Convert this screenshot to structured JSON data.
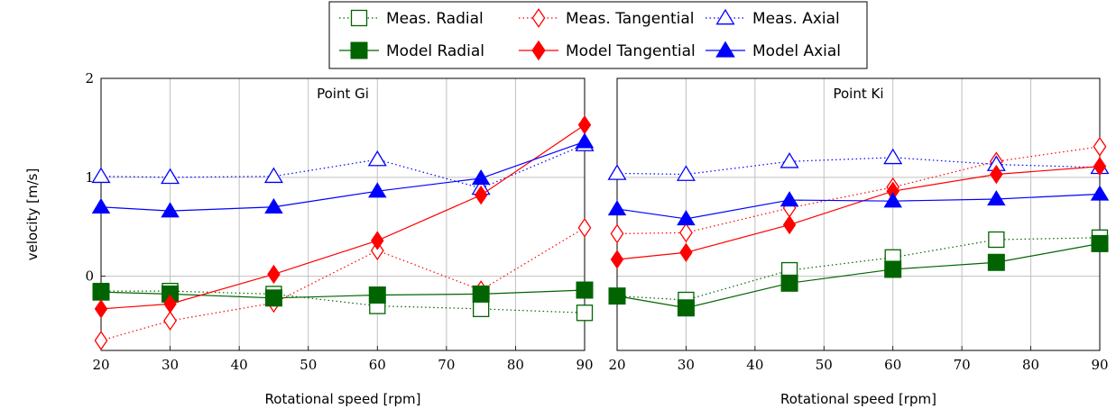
{
  "chart_data": [
    {
      "type": "line",
      "title": "Point Gi",
      "xlabel": "Rotational speed [rpm]",
      "ylabel": "velocity [m/s]",
      "xlim": [
        20,
        90
      ],
      "ylim": [
        -0.75,
        2
      ],
      "xticks": [
        20,
        30,
        40,
        50,
        60,
        70,
        80,
        90
      ],
      "yticks": [
        0,
        1,
        2
      ],
      "grid": true,
      "x": [
        20,
        30,
        45,
        60,
        75,
        90
      ],
      "series": [
        {
          "name": "Meas. Radial",
          "values": [
            -0.15,
            -0.15,
            -0.18,
            -0.3,
            -0.33,
            -0.37
          ]
        },
        {
          "name": "Meas. Tangential",
          "values": [
            -0.65,
            -0.45,
            -0.27,
            0.26,
            -0.14,
            0.49
          ]
        },
        {
          "name": "Meas. Axial",
          "values": [
            1.01,
            1.0,
            1.01,
            1.18,
            0.89,
            1.33
          ]
        },
        {
          "name": "Model Radial",
          "values": [
            -0.16,
            -0.18,
            -0.22,
            -0.19,
            -0.18,
            -0.14
          ]
        },
        {
          "name": "Model Tangential",
          "values": [
            -0.33,
            -0.28,
            0.02,
            0.36,
            0.82,
            1.53
          ]
        },
        {
          "name": "Model Axial",
          "values": [
            0.7,
            0.66,
            0.7,
            0.86,
            0.99,
            1.36
          ]
        }
      ]
    },
    {
      "type": "line",
      "title": "Point Ki",
      "xlabel": "Rotational speed [rpm]",
      "ylabel": "",
      "xlim": [
        20,
        90
      ],
      "ylim": [
        -0.75,
        2
      ],
      "xticks": [
        20,
        30,
        40,
        50,
        60,
        70,
        80,
        90
      ],
      "yticks": [],
      "grid": true,
      "x": [
        20,
        30,
        45,
        60,
        75,
        90
      ],
      "series": [
        {
          "name": "Meas. Radial",
          "values": [
            -0.2,
            -0.24,
            0.06,
            0.19,
            0.37,
            0.39
          ]
        },
        {
          "name": "Meas. Tangential",
          "values": [
            0.43,
            0.44,
            0.69,
            0.9,
            1.16,
            1.31
          ]
        },
        {
          "name": "Meas. Axial",
          "values": [
            1.04,
            1.03,
            1.16,
            1.2,
            1.13,
            1.1
          ]
        },
        {
          "name": "Model Radial",
          "values": [
            -0.2,
            -0.32,
            -0.07,
            0.07,
            0.14,
            0.33
          ]
        },
        {
          "name": "Model Tangential",
          "values": [
            0.17,
            0.24,
            0.52,
            0.86,
            1.03,
            1.11
          ]
        },
        {
          "name": "Model Axial",
          "values": [
            0.68,
            0.58,
            0.77,
            0.76,
            0.78,
            0.83
          ]
        }
      ]
    }
  ],
  "legend": {
    "placement": "top-center",
    "entries": [
      {
        "label": "Meas. Radial",
        "color": "#006400",
        "marker": "square-open",
        "line": "dotted"
      },
      {
        "label": "Meas. Tangential",
        "color": "#ff0000",
        "marker": "diamond-open",
        "line": "dotted"
      },
      {
        "label": "Meas. Axial",
        "color": "#0000ff",
        "marker": "triangle-open",
        "line": "dotted"
      },
      {
        "label": "Model Radial",
        "color": "#006400",
        "marker": "square-filled",
        "line": "solid"
      },
      {
        "label": "Model Tangential",
        "color": "#ff0000",
        "marker": "diamond-filled",
        "line": "solid"
      },
      {
        "label": "Model Axial",
        "color": "#0000ff",
        "marker": "triangle-filled",
        "line": "solid"
      }
    ]
  }
}
